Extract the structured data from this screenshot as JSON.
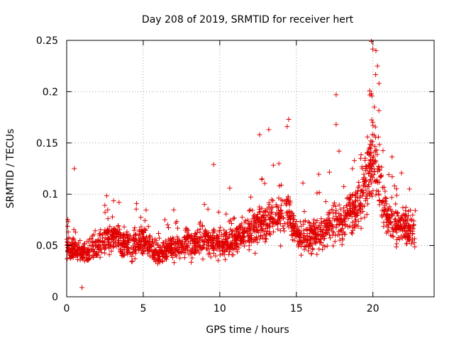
{
  "chart_data": {
    "type": "scatter",
    "title": "Day 208 of 2019, SRMTID for receiver hert",
    "xlabel": "GPS time / hours",
    "ylabel": "SRMTID / TECUs",
    "xlim": [
      0,
      24
    ],
    "ylim": [
      0,
      0.25
    ],
    "xticks": [
      0,
      5,
      10,
      15,
      20
    ],
    "xtick_labels": [
      "0",
      "5",
      "10",
      "15",
      "20"
    ],
    "yticks": [
      0,
      0.05,
      0.1,
      0.15,
      0.2,
      0.25
    ],
    "ytick_labels": [
      "0",
      "0.05",
      "0.1",
      "0.15",
      "0.2",
      "0.25"
    ],
    "grid": true,
    "marker": "+",
    "color": "#e00000",
    "series": [
      {
        "name": "SRMTID",
        "x_range": [
          0,
          22.8
        ],
        "trend": [
          {
            "x": 0.0,
            "y": 0.05
          },
          {
            "x": 1.0,
            "y": 0.042
          },
          {
            "x": 2.0,
            "y": 0.05
          },
          {
            "x": 3.0,
            "y": 0.058
          },
          {
            "x": 4.0,
            "y": 0.05
          },
          {
            "x": 5.0,
            "y": 0.055
          },
          {
            "x": 6.0,
            "y": 0.042
          },
          {
            "x": 7.0,
            "y": 0.048
          },
          {
            "x": 8.0,
            "y": 0.052
          },
          {
            "x": 9.0,
            "y": 0.055
          },
          {
            "x": 10.0,
            "y": 0.052
          },
          {
            "x": 11.0,
            "y": 0.055
          },
          {
            "x": 12.0,
            "y": 0.065
          },
          {
            "x": 13.0,
            "y": 0.072
          },
          {
            "x": 14.0,
            "y": 0.08
          },
          {
            "x": 14.5,
            "y": 0.082
          },
          {
            "x": 15.0,
            "y": 0.06
          },
          {
            "x": 16.0,
            "y": 0.058
          },
          {
            "x": 17.0,
            "y": 0.068
          },
          {
            "x": 18.0,
            "y": 0.075
          },
          {
            "x": 19.0,
            "y": 0.085
          },
          {
            "x": 19.5,
            "y": 0.11
          },
          {
            "x": 20.0,
            "y": 0.14
          },
          {
            "x": 20.5,
            "y": 0.11
          },
          {
            "x": 21.0,
            "y": 0.075
          },
          {
            "x": 22.0,
            "y": 0.068
          },
          {
            "x": 22.8,
            "y": 0.06
          }
        ],
        "outliers": [
          {
            "x": 17.6,
            "y": 0.197
          },
          {
            "x": 17.6,
            "y": 0.168
          },
          {
            "x": 19.9,
            "y": 0.249
          },
          {
            "x": 20.2,
            "y": 0.24
          },
          {
            "x": 20.3,
            "y": 0.225
          },
          {
            "x": 20.4,
            "y": 0.208
          },
          {
            "x": 19.9,
            "y": 0.198
          },
          {
            "x": 20.1,
            "y": 0.185
          },
          {
            "x": 20.0,
            "y": 0.17
          },
          {
            "x": 14.5,
            "y": 0.173
          },
          {
            "x": 14.4,
            "y": 0.166
          },
          {
            "x": 13.2,
            "y": 0.163
          },
          {
            "x": 12.6,
            "y": 0.158
          },
          {
            "x": 9.6,
            "y": 0.129
          },
          {
            "x": 0.5,
            "y": 0.125
          },
          {
            "x": 1.0,
            "y": 0.009
          }
        ]
      }
    ]
  }
}
